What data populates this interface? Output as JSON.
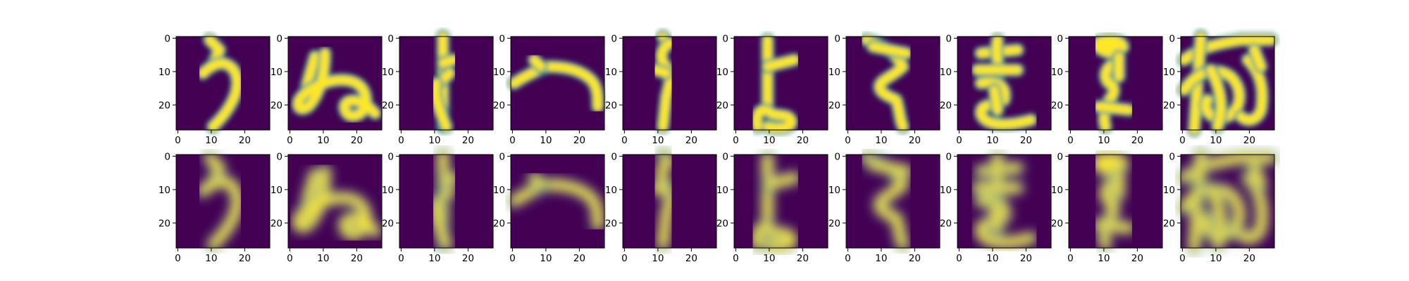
{
  "chart_data": {
    "type": "heatmap",
    "colormap": "viridis",
    "colors": {
      "low": "#440154",
      "mid": "#21918c",
      "high": "#fde725"
    },
    "image_size": [
      28,
      28
    ],
    "x_ticks": [
      "0",
      "10",
      "20"
    ],
    "y_ticks": [
      "0",
      "10",
      "20"
    ],
    "rows": [
      {
        "role": "original",
        "panels": [
          "ra",
          "nu",
          "ki",
          "he",
          "su",
          "to",
          "tsu",
          "ma",
          "ko",
          "wo"
        ]
      },
      {
        "role": "reconstruction",
        "panels": [
          "ra",
          "nu",
          "ki",
          "he",
          "su",
          "to",
          "tsu",
          "ma",
          "ko",
          "wo"
        ]
      }
    ]
  }
}
